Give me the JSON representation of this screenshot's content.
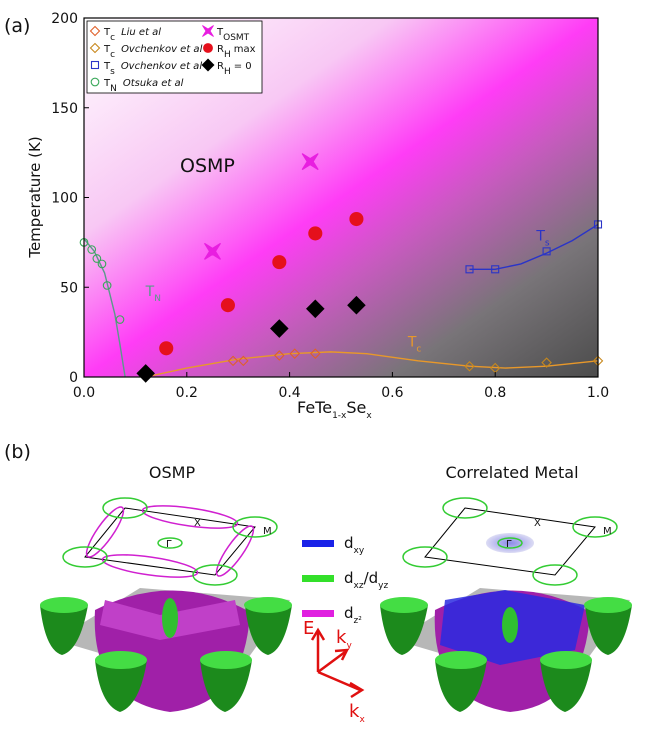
{
  "chart_data": {
    "type": "scatter",
    "panel_label": "(a)",
    "xlabel": [
      "FeTe",
      "1-x",
      "Se",
      "x"
    ],
    "ylabel": "Temperature (K)",
    "annotation": "OSMP",
    "xlim": [
      0,
      1
    ],
    "ylim": [
      0,
      200
    ],
    "xticks": [
      {
        "value": 0,
        "label": "0.0"
      },
      0.2,
      0.4,
      0.6,
      0.8,
      {
        "value": 1,
        "label": "1.0"
      }
    ],
    "yticks": [
      0,
      50,
      100,
      150,
      200
    ],
    "series": [
      {
        "name": [
          "T",
          "c"
        ],
        "note": "Liu et al",
        "color": "#e0602a",
        "marker": "diamond",
        "filled": false,
        "x": [
          0.29,
          0.31,
          0.38,
          0.41,
          0.45
        ],
        "values": [
          9,
          9,
          12,
          13,
          13
        ]
      },
      {
        "name": [
          "T",
          "c"
        ],
        "note": "Ovchenkov et al",
        "color": "#c8881c",
        "marker": "diamond",
        "filled": false,
        "x": [
          0.75,
          0.8,
          0.9,
          1.0
        ],
        "values": [
          6,
          5,
          8,
          9
        ]
      },
      {
        "name": [
          "T",
          "s"
        ],
        "note": "Ovchenkov et al",
        "color": "#2a34c8",
        "marker": "square",
        "filled": false,
        "x": [
          0.75,
          0.8,
          0.9,
          1.0
        ],
        "values": [
          60,
          60,
          70,
          85
        ]
      },
      {
        "name": [
          "T",
          "N"
        ],
        "note": "Otsuka et al",
        "color": "#3aa85a",
        "marker": "circle",
        "filled": false,
        "x": [
          0.0,
          0.015,
          0.025,
          0.035,
          0.045,
          0.07
        ],
        "values": [
          75,
          71,
          66,
          63,
          51,
          32
        ]
      },
      {
        "name": [
          "T",
          "OSMT"
        ],
        "color": "#e81ee0",
        "marker": "bowtie",
        "filled": true,
        "x": [
          0.25,
          0.44
        ],
        "values": [
          70,
          120
        ]
      },
      {
        "name": [
          "R",
          "H",
          "max"
        ],
        "color": "#e5101c",
        "marker": "circle",
        "filled": true,
        "x": [
          0.16,
          0.28,
          0.38,
          0.45,
          0.53
        ],
        "values": [
          16,
          40,
          64,
          80,
          88
        ]
      },
      {
        "name": [
          "R",
          "H",
          "= 0"
        ],
        "color": "#000000",
        "marker": "diamond",
        "filled": true,
        "x": [
          0.12,
          0.38,
          0.45,
          0.53
        ],
        "values": [
          2,
          27,
          38,
          40
        ]
      }
    ],
    "curves": [
      {
        "label": [
          "T",
          "N"
        ],
        "label_at": [
          0.12,
          45
        ],
        "color": "#5a9a8a",
        "x": [
          0.0,
          0.02,
          0.04,
          0.06,
          0.07,
          0.08
        ],
        "values": [
          77,
          70,
          58,
          35,
          18,
          0
        ]
      },
      {
        "label": [
          "T",
          "c"
        ],
        "label_at": [
          0.63,
          17
        ],
        "color": "#e8982a",
        "x": [
          0.12,
          0.2,
          0.3,
          0.4,
          0.48,
          0.55,
          0.65,
          0.75,
          0.82,
          0.9,
          1.0
        ],
        "values": [
          0,
          5,
          10,
          13,
          14,
          13,
          9,
          6,
          5,
          6,
          9
        ]
      },
      {
        "label": [
          "T",
          "s"
        ],
        "label_at": [
          0.88,
          76
        ],
        "color": "#2a34c8",
        "x": [
          0.75,
          0.8,
          0.85,
          0.9,
          0.95,
          1.0
        ],
        "values": [
          60,
          60,
          63,
          69,
          76,
          85
        ]
      }
    ]
  },
  "panel_b": {
    "label": "(b)",
    "titles": [
      "OSMP",
      "Correlated Metal"
    ],
    "legend": [
      {
        "parts": [
          "d",
          "xy"
        ],
        "color": "#1a22e8"
      },
      {
        "parts": [
          "d",
          "xz",
          "/d",
          "yz"
        ],
        "color": "#33e02a"
      },
      {
        "parts": [
          "d",
          "z²"
        ],
        "color": "#e020e0"
      }
    ],
    "points": [
      "X",
      "M",
      "Γ"
    ],
    "axes": {
      "e": "E",
      "ky": [
        "k",
        "y"
      ],
      "kx": [
        "k",
        "x"
      ]
    }
  }
}
